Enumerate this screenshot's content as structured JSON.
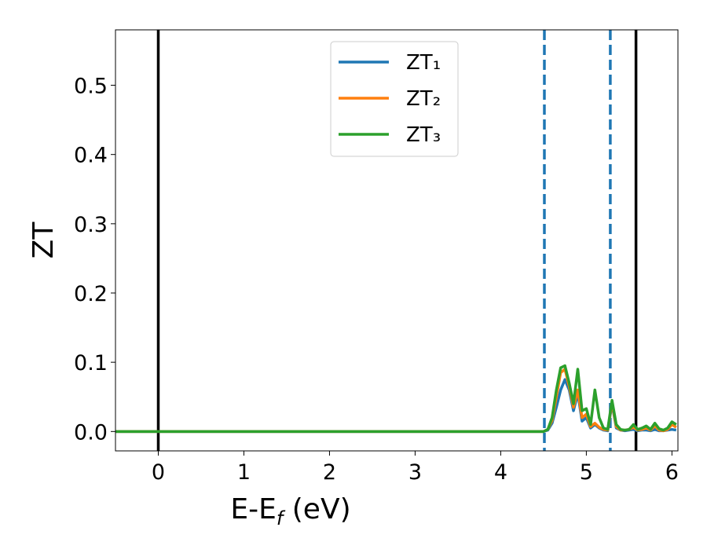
{
  "chart_data": {
    "type": "line",
    "x_label": [
      "E-E",
      "f",
      " (eV)"
    ],
    "y_label": "ZT",
    "x": [
      -0.5,
      4.5,
      4.55,
      4.6,
      4.65,
      4.7,
      4.75,
      4.8,
      4.85,
      4.9,
      4.95,
      5.0,
      5.05,
      5.1,
      5.15,
      5.2,
      5.25,
      5.3,
      5.35,
      5.4,
      5.45,
      5.5,
      5.55,
      5.6,
      5.65,
      5.7,
      5.75,
      5.8,
      5.85,
      5.9,
      5.95,
      6.0,
      6.05
    ],
    "series": [
      {
        "name": "ZT₁",
        "color": "#1f77b4",
        "values": [
          0,
          0,
          0.002,
          0.012,
          0.035,
          0.06,
          0.075,
          0.06,
          0.03,
          0.055,
          0.015,
          0.02,
          0.005,
          0.01,
          0.005,
          0.002,
          0.001,
          0.04,
          0.005,
          0.002,
          0.001,
          0.002,
          0.003,
          0.001,
          0.002,
          0.002,
          0.001,
          0.003,
          0.001,
          0.001,
          0.002,
          0.003,
          0.002
        ]
      },
      {
        "name": "ZT₂",
        "color": "#ff7f0e",
        "values": [
          0,
          0,
          0.003,
          0.016,
          0.05,
          0.085,
          0.09,
          0.065,
          0.035,
          0.06,
          0.02,
          0.025,
          0.007,
          0.012,
          0.006,
          0.003,
          0.002,
          0.042,
          0.007,
          0.002,
          0.002,
          0.003,
          0.006,
          0.002,
          0.003,
          0.005,
          0.002,
          0.008,
          0.002,
          0.001,
          0.003,
          0.01,
          0.006
        ]
      },
      {
        "name": "ZT₃",
        "color": "#2ca02c",
        "values": [
          0,
          0,
          0.003,
          0.02,
          0.06,
          0.092,
          0.095,
          0.07,
          0.04,
          0.09,
          0.03,
          0.033,
          0.01,
          0.06,
          0.02,
          0.005,
          0.003,
          0.045,
          0.01,
          0.003,
          0.002,
          0.003,
          0.01,
          0.003,
          0.005,
          0.008,
          0.003,
          0.012,
          0.004,
          0.002,
          0.005,
          0.014,
          0.01
        ]
      }
    ],
    "vlines": [
      {
        "x": 0,
        "color": "#000000",
        "dashed": false
      },
      {
        "x": 4.51,
        "color": "#1f77b4",
        "dashed": true
      },
      {
        "x": 5.28,
        "color": "#1f77b4",
        "dashed": true
      },
      {
        "x": 5.58,
        "color": "#000000",
        "dashed": false
      }
    ],
    "xlim": [
      -0.5,
      6.07
    ],
    "ylim": [
      -0.028,
      0.58
    ],
    "xticks": [
      0,
      1,
      2,
      3,
      4,
      5,
      6
    ],
    "yticks": [
      {
        "value": 0,
        "label": "0.0"
      },
      0.1,
      0.2,
      0.3,
      0.4,
      0.5
    ],
    "legend": "upper center"
  }
}
